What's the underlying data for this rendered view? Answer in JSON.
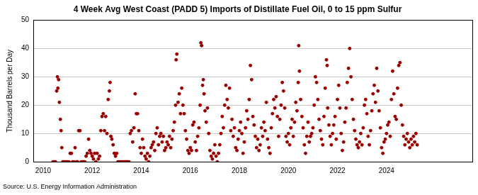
{
  "chart_data": {
    "type": "scatter",
    "title": "4 Week Avg West Coast (PADD 5) Imports of Distillate Fuel Oil, 0 to 15 ppm Sulfur",
    "y_label": "Thousand Barrels per Day",
    "source": "Source: U.S. Energy Information Administration",
    "color": "#990000",
    "marker": "circle",
    "grid": true,
    "xlim": [
      2009.6,
      2027.5
    ],
    "xticks": [
      2010,
      2012,
      2014,
      2016,
      2018,
      2020,
      2022,
      2024
    ],
    "ylim": [
      0,
      50
    ],
    "yticks": [
      0,
      10,
      20,
      30,
      40,
      50
    ],
    "x": [
      2010.4,
      2010.45,
      2010.5,
      2010.55,
      2010.58,
      2010.6,
      2010.63,
      2010.66,
      2010.7,
      2010.73,
      2010.76,
      2010.8,
      2010.85,
      2010.9,
      2010.95,
      2011.0,
      2011.05,
      2011.1,
      2011.15,
      2011.2,
      2011.25,
      2011.3,
      2011.35,
      2011.4,
      2011.45,
      2011.5,
      2011.55,
      2011.6,
      2011.65,
      2011.7,
      2011.75,
      2011.8,
      2011.85,
      2011.9,
      2011.95,
      2012.0,
      2012.05,
      2012.1,
      2012.15,
      2012.2,
      2012.25,
      2012.3,
      2012.35,
      2012.4,
      2012.45,
      2012.5,
      2012.55,
      2012.6,
      2012.65,
      2012.7,
      2012.73,
      2012.76,
      2012.8,
      2012.85,
      2012.9,
      2012.95,
      2013.0,
      2013.05,
      2013.1,
      2013.15,
      2013.2,
      2013.25,
      2013.3,
      2013.35,
      2013.4,
      2013.45,
      2013.5,
      2013.55,
      2013.6,
      2013.65,
      2013.7,
      2013.75,
      2013.8,
      2013.85,
      2013.9,
      2013.95,
      2014.0,
      2014.05,
      2014.1,
      2014.15,
      2014.2,
      2014.25,
      2014.3,
      2014.35,
      2014.4,
      2014.45,
      2014.5,
      2014.55,
      2014.6,
      2014.65,
      2014.7,
      2014.75,
      2014.8,
      2014.85,
      2014.9,
      2014.95,
      2015.0,
      2015.05,
      2015.1,
      2015.15,
      2015.2,
      2015.25,
      2015.3,
      2015.35,
      2015.4,
      2015.42,
      2015.45,
      2015.5,
      2015.55,
      2015.6,
      2015.65,
      2015.7,
      2015.75,
      2015.8,
      2015.85,
      2015.9,
      2015.95,
      2016.0,
      2016.05,
      2016.1,
      2016.15,
      2016.2,
      2016.25,
      2016.3,
      2016.35,
      2016.4,
      2016.43,
      2016.46,
      2016.5,
      2016.53,
      2016.56,
      2016.6,
      2016.65,
      2016.7,
      2016.75,
      2016.8,
      2016.85,
      2016.9,
      2016.95,
      2017.0,
      2017.05,
      2017.1,
      2017.15,
      2017.2,
      2017.25,
      2017.3,
      2017.35,
      2017.4,
      2017.45,
      2017.5,
      2017.55,
      2017.6,
      2017.65,
      2017.7,
      2017.75,
      2017.8,
      2017.85,
      2017.9,
      2017.95,
      2018.0,
      2018.05,
      2018.1,
      2018.15,
      2018.2,
      2018.25,
      2018.3,
      2018.35,
      2018.4,
      2018.45,
      2018.5,
      2018.55,
      2018.6,
      2018.65,
      2018.7,
      2018.75,
      2018.8,
      2018.85,
      2018.9,
      2018.95,
      2019.0,
      2019.05,
      2019.1,
      2019.15,
      2019.2,
      2019.25,
      2019.3,
      2019.35,
      2019.4,
      2019.45,
      2019.5,
      2019.55,
      2019.6,
      2019.65,
      2019.7,
      2019.75,
      2019.8,
      2019.85,
      2019.9,
      2019.95,
      2020.0,
      2020.05,
      2020.1,
      2020.15,
      2020.2,
      2020.25,
      2020.3,
      2020.35,
      2020.4,
      2020.42,
      2020.45,
      2020.5,
      2020.55,
      2020.6,
      2020.65,
      2020.7,
      2020.75,
      2020.8,
      2020.85,
      2020.9,
      2020.95,
      2021.0,
      2021.05,
      2021.1,
      2021.15,
      2021.2,
      2021.25,
      2021.3,
      2021.35,
      2021.4,
      2021.45,
      2021.5,
      2021.55,
      2021.58,
      2021.6,
      2021.65,
      2021.7,
      2021.75,
      2021.8,
      2021.85,
      2021.9,
      2021.95,
      2022.0,
      2022.05,
      2022.1,
      2022.15,
      2022.2,
      2022.25,
      2022.3,
      2022.35,
      2022.4,
      2022.45,
      2022.5,
      2022.55,
      2022.6,
      2022.65,
      2022.7,
      2022.75,
      2022.8,
      2022.85,
      2022.9,
      2022.95,
      2023.0,
      2023.05,
      2023.1,
      2023.15,
      2023.2,
      2023.25,
      2023.3,
      2023.35,
      2023.4,
      2023.45,
      2023.5,
      2023.55,
      2023.6,
      2023.65,
      2023.7,
      2023.75,
      2023.8,
      2023.85,
      2023.9,
      2023.95,
      2024.0,
      2024.05,
      2024.1,
      2024.15,
      2024.2,
      2024.25,
      2024.3,
      2024.35,
      2024.4,
      2024.45,
      2024.5,
      2024.55,
      2024.6,
      2024.65,
      2024.7,
      2024.75,
      2024.8,
      2024.85,
      2024.9,
      2024.95,
      2025.0,
      2025.05,
      2025.1,
      2025.15,
      2025.2,
      2025.25
    ],
    "values": [
      0,
      0,
      0,
      25,
      30,
      26,
      29,
      21,
      15,
      11,
      5,
      0,
      0,
      0,
      0,
      0,
      0,
      3,
      3,
      0,
      0,
      5,
      0,
      0,
      11,
      11,
      0,
      0,
      0,
      0,
      2,
      3,
      8,
      4,
      3,
      2,
      1,
      3,
      0,
      3,
      1,
      2,
      11,
      16,
      17,
      11,
      16,
      10,
      22,
      25,
      28,
      9,
      8,
      6,
      3,
      2,
      3,
      0,
      0,
      0,
      0,
      0,
      0,
      0,
      0,
      0,
      0,
      10,
      11,
      7,
      12,
      24,
      17,
      17,
      11,
      5,
      3,
      8,
      5,
      2,
      1,
      3,
      0,
      2,
      5,
      6,
      7,
      4,
      10,
      12,
      6,
      9,
      10,
      7,
      9,
      4,
      5,
      7,
      6,
      9,
      5,
      8,
      11,
      14,
      20,
      36,
      38,
      21,
      24,
      17,
      26,
      20,
      17,
      11,
      8,
      4,
      3,
      5,
      4,
      13,
      14,
      7,
      4,
      9,
      12,
      20,
      42,
      41,
      27,
      29,
      24,
      18,
      14,
      19,
      10,
      4,
      2,
      1,
      3,
      6,
      2,
      0,
      3,
      6,
      10,
      16,
      12,
      20,
      27,
      22,
      19,
      26,
      11,
      15,
      9,
      12,
      5,
      4,
      8,
      11,
      14,
      10,
      3,
      7,
      12,
      18,
      15,
      22,
      34,
      29,
      16,
      13,
      9,
      5,
      8,
      4,
      6,
      12,
      9,
      14,
      11,
      21,
      8,
      5,
      3,
      12,
      17,
      22,
      19,
      23,
      16,
      9,
      15,
      20,
      28,
      25,
      19,
      9,
      7,
      10,
      6,
      12,
      15,
      9,
      14,
      21,
      18,
      28,
      41,
      32,
      22,
      16,
      12,
      6,
      3,
      9,
      14,
      7,
      9,
      10,
      12,
      20,
      30,
      28,
      22,
      15,
      11,
      8,
      6,
      16,
      26,
      36,
      34,
      19,
      13,
      9,
      6,
      10,
      13,
      16,
      8,
      22,
      27,
      19,
      10,
      4,
      7,
      14,
      19,
      28,
      33,
      40,
      30,
      22,
      15,
      11,
      8,
      6,
      5,
      7,
      10,
      6,
      12,
      20,
      22,
      17,
      9,
      6,
      11,
      18,
      24,
      27,
      21,
      33,
      25,
      18,
      12,
      5,
      3,
      7,
      8,
      10,
      13,
      14,
      9,
      22,
      32,
      24,
      16,
      15,
      26,
      34,
      35,
      20,
      13,
      9,
      6,
      8,
      10,
      7,
      5,
      8,
      6,
      9,
      7,
      10,
      6
    ]
  }
}
